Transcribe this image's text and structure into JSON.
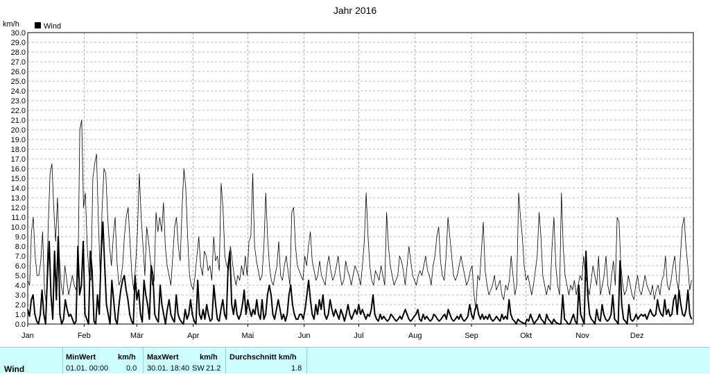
{
  "chart_data": {
    "type": "line",
    "title": "Jahr 2016",
    "ylabel": "km/h",
    "ylim": [
      0,
      30
    ],
    "ytick_step": 1,
    "grid": true,
    "legend": {
      "entries": [
        "Wind"
      ],
      "placement": "top-left"
    },
    "month_labels": [
      "Jan",
      "Feb",
      "Mär",
      "Apr",
      "Mai",
      "Jun",
      "Jul",
      "Aug",
      "Sep",
      "Okt",
      "Nov",
      "Dez"
    ],
    "x_days": 366,
    "series": [
      {
        "name": "Wind",
        "color": "#000000",
        "stroke": "bold",
        "values": [
          1.5,
          0.8,
          2.5,
          3.0,
          1.0,
          0.3,
          0.0,
          1.0,
          3.5,
          1.0,
          0.0,
          5.0,
          8.5,
          3.0,
          0.5,
          7.5,
          2.5,
          9.0,
          1.0,
          0.0,
          0.5,
          2.5,
          1.5,
          0.8,
          1.0,
          0.5,
          0.0,
          0.3,
          8.0,
          3.0,
          4.0,
          8.5,
          1.0,
          0.5,
          0.0,
          7.5,
          5.5,
          0.3,
          0.0,
          3.0,
          1.0,
          7.0,
          10.5,
          6.0,
          2.0,
          1.0,
          0.0,
          4.5,
          2.5,
          0.5,
          0.0,
          2.0,
          3.5,
          4.5,
          5.0,
          3.5,
          2.5,
          1.0,
          0.3,
          0.0,
          5.0,
          2.5,
          3.5,
          1.0,
          0.2,
          4.5,
          3.0,
          2.0,
          0.5,
          6.0,
          5.0,
          1.0,
          0.5,
          0.2,
          4.0,
          2.0,
          1.0,
          0.0,
          1.5,
          2.5,
          1.0,
          0.5,
          0.2,
          3.0,
          1.0,
          0.5,
          0.2,
          0.0,
          1.5,
          0.5,
          1.0,
          2.5,
          1.0,
          0.3,
          0.0,
          4.5,
          1.0,
          0.5,
          1.5,
          0.5,
          2.0,
          1.0,
          0.3,
          0.5,
          4.0,
          2.0,
          0.5,
          0.3,
          1.5,
          2.5,
          1.0,
          0.5,
          6.0,
          7.5,
          2.0,
          1.0,
          2.5,
          1.0,
          0.5,
          1.0,
          2.0,
          3.5,
          1.0,
          2.5,
          1.5,
          0.8,
          1.5,
          1.0,
          2.5,
          1.0,
          0.5,
          2.5,
          0.5,
          1.0,
          3.0,
          4.0,
          3.0,
          1.0,
          0.5,
          1.5,
          2.5,
          1.5,
          0.5,
          1.0,
          0.3,
          1.0,
          3.0,
          4.0,
          2.0,
          1.0,
          0.5,
          0.5,
          1.0,
          1.0,
          0.5,
          1.5,
          3.0,
          4.5,
          2.5,
          1.0,
          0.5,
          2.0,
          1.0,
          2.5,
          1.5,
          3.0,
          1.0,
          0.5,
          1.0,
          2.5,
          1.5,
          0.8,
          1.5,
          1.0,
          0.5,
          1.5,
          1.0,
          0.3,
          1.0,
          2.0,
          1.0,
          0.5,
          1.0,
          1.5,
          1.0,
          2.0,
          1.0,
          1.5,
          1.0,
          0.5,
          1.0,
          0.8,
          1.5,
          3.0,
          1.0,
          0.5,
          0.3,
          1.0,
          0.5,
          0.8,
          0.5,
          0.3,
          0.5,
          1.0,
          0.8,
          0.5,
          0.3,
          0.5,
          0.8,
          0.5,
          1.0,
          1.5,
          1.0,
          0.5,
          0.3,
          0.5,
          0.8,
          1.0,
          1.5,
          0.5,
          0.3,
          1.0,
          0.5,
          0.8,
          0.5,
          0.3,
          0.5,
          1.0,
          0.8,
          0.5,
          0.3,
          0.5,
          0.8,
          1.0,
          0.5,
          1.5,
          1.0,
          0.5,
          0.3,
          0.5,
          0.8,
          0.5,
          1.0,
          0.5,
          0.3,
          0.5,
          0.8,
          2.0,
          1.0,
          0.5,
          1.5,
          2.0,
          1.0,
          0.5,
          1.0,
          0.5,
          0.8,
          0.5,
          1.0,
          0.5,
          0.3,
          0.5,
          0.8,
          0.5,
          0.3,
          1.0,
          0.5,
          0.8,
          0.5,
          2.5,
          1.0,
          0.5,
          0.3,
          0.0,
          0.5,
          0.3,
          0.2,
          0.1,
          0.0,
          0.5,
          0.3,
          1.0,
          0.5,
          0.0,
          0.3,
          0.5,
          1.0,
          0.5,
          0.3,
          0.0,
          1.0,
          0.5,
          0.3,
          0.0,
          0.5,
          0.2,
          0.1,
          0.0,
          0.0,
          3.0,
          0.5,
          0.3,
          0.0,
          0.0,
          0.5,
          1.0,
          0.3,
          0.0,
          4.0,
          1.0,
          0.5,
          0.0,
          7.5,
          3.0,
          1.0,
          0.5,
          0.3,
          0.0,
          1.5,
          0.5,
          0.3,
          2.0,
          1.0,
          0.5,
          0.3,
          0.5,
          1.0,
          3.0,
          0.5,
          0.3,
          0.0,
          6.5,
          2.0,
          0.5,
          0.3,
          0.0,
          2.0,
          0.5,
          0.3,
          0.5,
          1.0,
          0.5,
          0.8,
          1.0,
          0.8,
          1.0,
          0.5,
          1.0,
          1.5,
          1.0,
          0.8,
          1.0,
          2.5,
          1.5,
          1.0,
          0.8,
          2.5,
          1.0,
          1.5,
          0.8,
          1.0,
          2.5,
          3.0,
          1.0,
          3.5,
          2.0,
          1.0,
          0.8,
          1.5,
          3.5,
          1.0,
          0.5
        ]
      },
      {
        "name": "",
        "color": "#000000",
        "stroke": "thin",
        "values": [
          4.5,
          4.0,
          9.5,
          11.0,
          7.0,
          5.0,
          5.0,
          6.5,
          9.5,
          3.5,
          2.0,
          10.0,
          15.5,
          16.5,
          12.0,
          8.5,
          13.0,
          7.0,
          4.0,
          3.0,
          6.0,
          4.5,
          3.0,
          4.0,
          5.0,
          4.0,
          3.5,
          5.0,
          20.0,
          21.0,
          12.0,
          13.5,
          8.0,
          5.0,
          4.5,
          15.0,
          16.5,
          17.5,
          10.5,
          5.0,
          12.0,
          16.0,
          15.5,
          11.0,
          8.0,
          6.0,
          9.0,
          11.0,
          6.5,
          4.0,
          4.5,
          6.0,
          9.0,
          11.0,
          12.0,
          8.5,
          5.0,
          3.5,
          6.0,
          9.5,
          15.5,
          11.0,
          8.0,
          5.0,
          10.0,
          8.5,
          6.5,
          4.0,
          4.5,
          11.5,
          9.5,
          11.0,
          9.5,
          12.5,
          8.0,
          6.0,
          5.0,
          4.0,
          7.0,
          10.0,
          11.0,
          8.0,
          6.5,
          12.0,
          16.0,
          14.0,
          9.0,
          5.0,
          4.0,
          3.5,
          5.0,
          7.0,
          9.0,
          6.0,
          5.0,
          7.5,
          7.0,
          5.5,
          6.0,
          4.5,
          9.0,
          6.5,
          7.0,
          5.5,
          14.5,
          12.0,
          7.0,
          6.0,
          5.5,
          8.0,
          6.5,
          5.0,
          4.0,
          5.0,
          4.5,
          6.0,
          5.0,
          7.0,
          5.0,
          8.5,
          9.0,
          15.5,
          8.0,
          6.5,
          5.5,
          4.5,
          5.0,
          8.0,
          13.5,
          9.0,
          6.0,
          4.5,
          4.0,
          5.0,
          6.0,
          8.5,
          5.0,
          4.5,
          6.0,
          7.0,
          5.5,
          4.0,
          11.5,
          12.0,
          8.0,
          6.0,
          5.5,
          5.0,
          4.5,
          7.0,
          6.0,
          8.0,
          9.5,
          6.5,
          5.5,
          4.5,
          5.0,
          6.5,
          5.0,
          4.5,
          4.0,
          6.0,
          7.0,
          5.5,
          4.5,
          5.0,
          6.0,
          7.0,
          5.0,
          4.0,
          4.5,
          6.5,
          5.5,
          5.0,
          4.0,
          5.0,
          6.0,
          5.5,
          5.0,
          4.0,
          6.0,
          8.5,
          13.5,
          9.0,
          6.0,
          4.5,
          4.0,
          5.5,
          5.0,
          4.5,
          6.0,
          5.0,
          4.0,
          11.5,
          8.0,
          6.0,
          5.0,
          4.0,
          4.5,
          5.0,
          7.0,
          6.5,
          5.5,
          4.0,
          6.0,
          8.0,
          6.5,
          5.0,
          4.5,
          4.0,
          5.0,
          5.5,
          5.0,
          6.0,
          7.0,
          5.5,
          5.0,
          4.0,
          6.0,
          7.0,
          9.0,
          10.0,
          6.5,
          5.0,
          4.5,
          7.0,
          11.0,
          9.0,
          7.0,
          5.0,
          4.5,
          5.0,
          6.0,
          7.0,
          6.0,
          5.0,
          4.0,
          4.5,
          5.5,
          6.0,
          3.0,
          1.5,
          5.0,
          4.5,
          7.5,
          10.5,
          5.5,
          4.0,
          3.0,
          3.5,
          4.0,
          5.0,
          3.5,
          4.0,
          4.5,
          3.0,
          2.5,
          4.0,
          3.5,
          4.5,
          7.0,
          5.0,
          3.0,
          4.0,
          13.5,
          11.0,
          9.0,
          6.0,
          4.5,
          5.0,
          4.0,
          3.0,
          4.0,
          5.5,
          7.0,
          11.5,
          9.0,
          5.0,
          4.0,
          3.0,
          4.0,
          3.5,
          8.0,
          11.0,
          6.0,
          4.0,
          3.0,
          13.5,
          8.0,
          5.0,
          4.0,
          3.0,
          4.0,
          3.5,
          4.5,
          3.0,
          4.0,
          5.0,
          4.5,
          7.0,
          5.0,
          4.0,
          3.0,
          4.5,
          6.0,
          5.0,
          4.0,
          7.0,
          3.0,
          4.0,
          5.0,
          7.0,
          4.0,
          3.0,
          5.0,
          6.5,
          4.0,
          11.0,
          10.5,
          6.0,
          4.0,
          3.0,
          3.5,
          5.0,
          4.0,
          3.0,
          2.5,
          4.0,
          5.0,
          3.5,
          3.0,
          4.0,
          5.0,
          4.0,
          3.5,
          3.0,
          4.0,
          2.5,
          3.5,
          4.0,
          3.0,
          4.5,
          5.0,
          7.0,
          4.0,
          3.5,
          4.5,
          6.0,
          7.0,
          4.5,
          3.5,
          7.0,
          10.0,
          11.0,
          8.0,
          6.0,
          3.5,
          4.5
        ]
      }
    ]
  },
  "stats": {
    "row_label": "Wind",
    "min_header": "MinWert",
    "max_header": "MaxWert",
    "unit_header": "km/h",
    "avg_header": "Durchschnitt km/h",
    "min_date": "01.01.  00:00",
    "min_value": "0.0",
    "max_date": "30.01.  18:40",
    "max_dir": "SW",
    "max_value": "21.2",
    "avg_value": "1.8"
  }
}
